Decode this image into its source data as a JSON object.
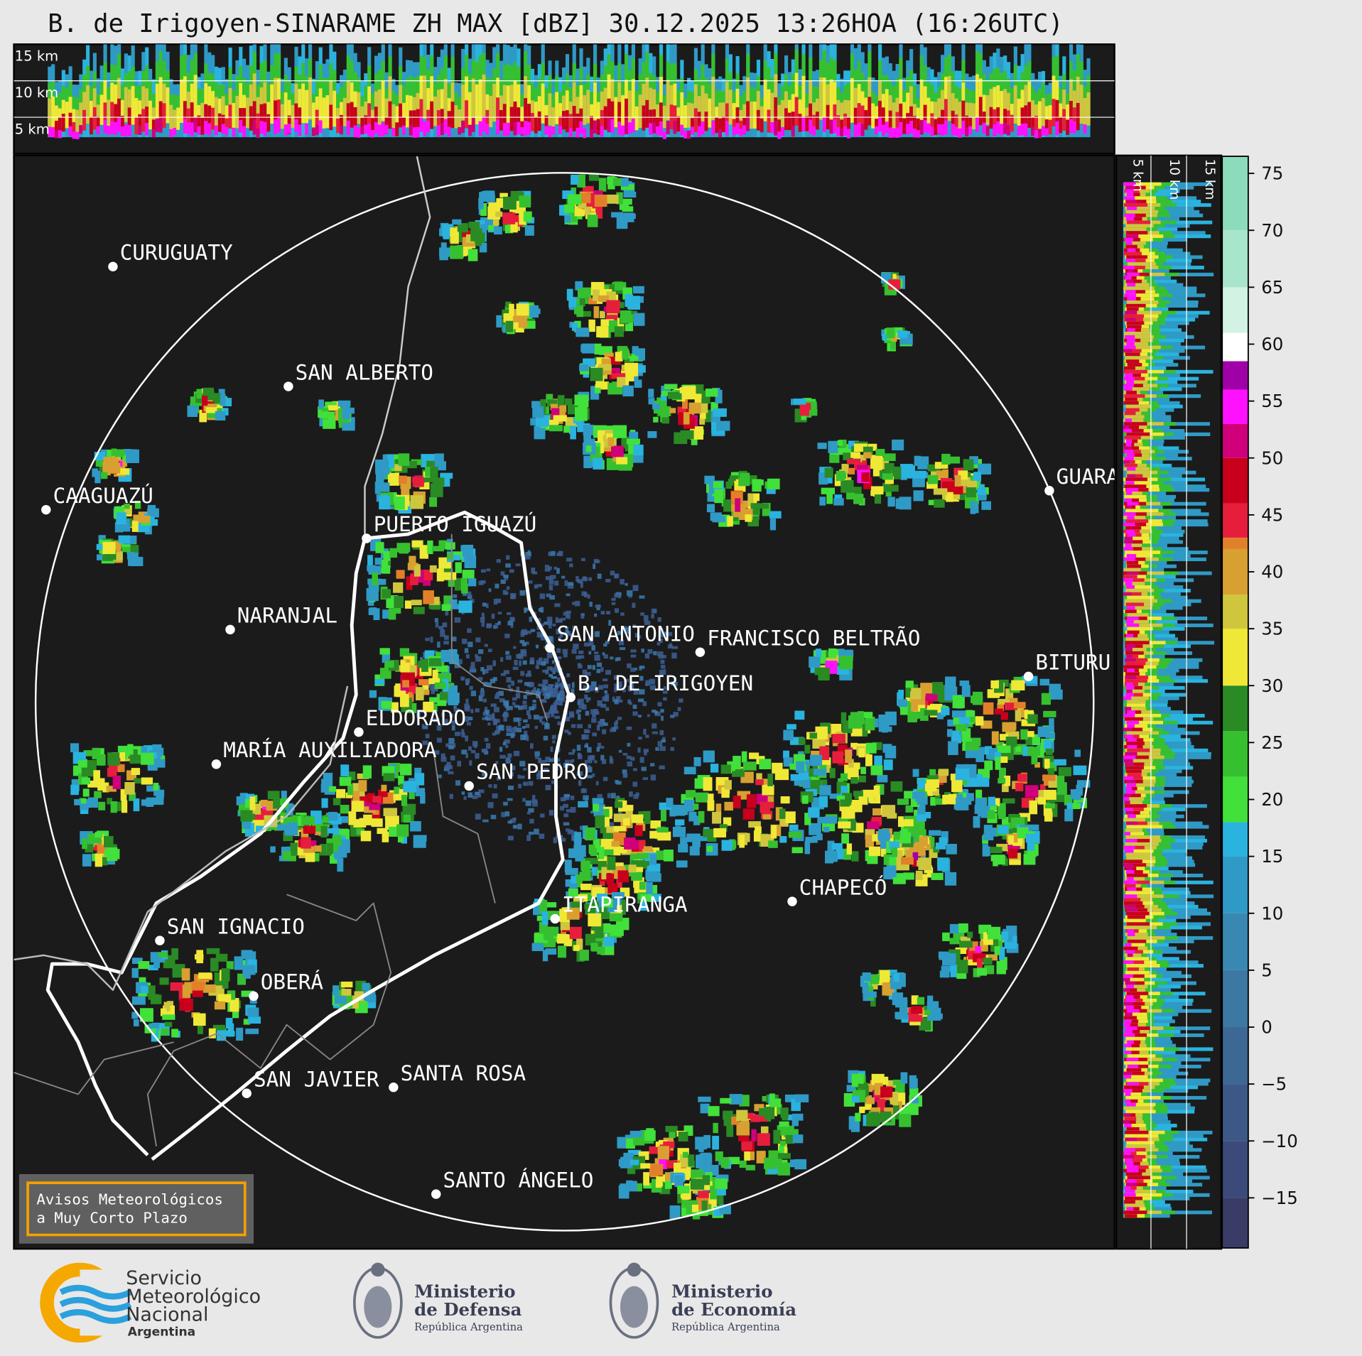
{
  "title": "B. de Irigoyen-SINARAME ZH MAX [dBZ] 30.12.2025 13:26HOA (16:26UTC)",
  "top_panel": {
    "height_labels": [
      "15 km",
      "10 km",
      "5 km"
    ]
  },
  "side_panel": {
    "height_labels": [
      "5 km",
      "10 km",
      "15 km"
    ]
  },
  "cities": [
    "CURUGUATY",
    "SAN ALBERTO",
    "CAAGUAZÚ",
    "PUERTO IGUAZÚ",
    "NARANJAL",
    "SAN ANTONIO",
    "FRANCISCO BELTRÃO",
    "B. DE IRIGOYEN",
    "ELDORADO",
    "MARÍA AUXILIADORA",
    "SAN PEDRO",
    "GUARA",
    "BITURU",
    "ITAPIRANGA",
    "CHAPECÓ",
    "SAN IGNACIO",
    "OBERÁ",
    "SAN JAVIER",
    "SANTA ROSA",
    "SANTO ÁNGELO"
  ],
  "colorbar": {
    "clim": [
      -19.4,
      76.5
    ],
    "ticks": [
      {
        "value": -15,
        "label": "−15"
      },
      {
        "value": -10,
        "label": "−10"
      },
      {
        "value": -5,
        "label": "−5"
      },
      0,
      5,
      10,
      15,
      20,
      25,
      30,
      35,
      40,
      45,
      50,
      55,
      60,
      65,
      70,
      75
    ],
    "colormap": [
      {
        "value": -19.4,
        "color": "#383c66"
      },
      {
        "value": -15,
        "color": "#3b4a78"
      },
      {
        "value": -10,
        "color": "#3d5886"
      },
      {
        "value": -5,
        "color": "#3e6894"
      },
      {
        "value": 0,
        "color": "#3c78a2"
      },
      {
        "value": 5,
        "color": "#3888b2"
      },
      {
        "value": 10,
        "color": "#2f9ac6"
      },
      {
        "value": 15,
        "color": "#2ab3df"
      },
      {
        "value": 18,
        "color": "#42e03a"
      },
      {
        "value": 22,
        "color": "#36c030"
      },
      {
        "value": 26,
        "color": "#2a8a24"
      },
      {
        "value": 30,
        "color": "#f0e836"
      },
      {
        "value": 35,
        "color": "#cfc63e"
      },
      {
        "value": 38,
        "color": "#d8a030"
      },
      {
        "value": 42,
        "color": "#e2802a"
      },
      {
        "value": 43,
        "color": "#e61e3c"
      },
      {
        "value": 46,
        "color": "#c8001c"
      },
      {
        "value": 50,
        "color": "#d0007a"
      },
      {
        "value": 53,
        "color": "#ff10ff"
      },
      {
        "value": 56,
        "color": "#a000a8"
      },
      {
        "value": 58.5,
        "color": "#ffffff"
      },
      {
        "value": 61,
        "color": "#d2f2e4"
      },
      {
        "value": 65,
        "color": "#a8e6cc"
      },
      {
        "value": 70,
        "color": "#8cdcbc"
      }
    ]
  },
  "notice": {
    "lines": [
      "Avisos Meteorológicos",
      "a Muy Corto Plazo"
    ]
  },
  "footer": {
    "smn": [
      "Servicio",
      "Meteorológico",
      "Nacional",
      "Argentina"
    ],
    "defensa": [
      "Ministerio",
      "de Defensa",
      "República Argentina"
    ],
    "economia": [
      "Ministerio",
      "de Economía",
      "República Argentina"
    ]
  }
}
